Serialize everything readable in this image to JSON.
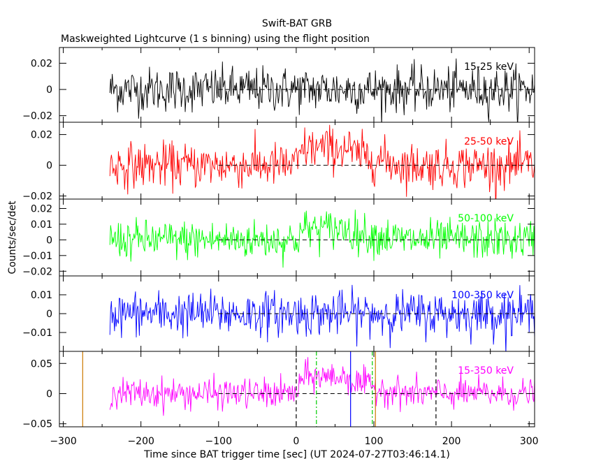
{
  "chart_data": {
    "type": "line",
    "title": "Swift-BAT GRB",
    "subtitle": "Maskweighted Lightcurve (1 s binning) using the flight position",
    "xlabel": "Time since BAT trigger time [sec] (UT 2024-07-27T03:46:14.1)",
    "ylabel": "Counts/sec/det",
    "xlim": [
      -305,
      307
    ],
    "xticks": [
      -300,
      -200,
      -100,
      0,
      100,
      200,
      300
    ],
    "x_start": -240,
    "x_end": 307,
    "x_step": 1,
    "grid": false,
    "legend": "inside-top-right label per panel",
    "panels": [
      {
        "name": "15-25 keV",
        "color": "#000000",
        "ylim": [
          -0.025,
          0.032
        ],
        "yticks": [
          0.02,
          0,
          -0.02
        ],
        "ytick_labels": [
          "0.02",
          "0",
          "−0.02"
        ],
        "noise_sigma": 0.0085,
        "excess_peak": 0.0
      },
      {
        "name": "25-50 keV",
        "color": "#ff0000",
        "ylim": [
          -0.022,
          0.028
        ],
        "yticks": [
          0.02,
          0,
          -0.02
        ],
        "ytick_labels": [
          "0.02",
          "0",
          "−0.02"
        ],
        "noise_sigma": 0.0072,
        "excess_peak": 0.011
      },
      {
        "name": "50-100 keV",
        "color": "#00ff00",
        "ylim": [
          -0.023,
          0.026
        ],
        "yticks": [
          0.02,
          0.01,
          0,
          -0.01,
          -0.02
        ],
        "ytick_labels": [
          "0.02",
          "0.01",
          "0",
          "−0.01",
          "−0.02"
        ],
        "noise_sigma": 0.0062,
        "excess_peak": 0.007
      },
      {
        "name": "100-350 keV",
        "color": "#0000ff",
        "ylim": [
          -0.02,
          0.02
        ],
        "yticks": [
          0.01,
          0,
          -0.01
        ],
        "ytick_labels": [
          "0.01",
          "0",
          "−0.01"
        ],
        "noise_sigma": 0.0058,
        "excess_peak": 0.0
      },
      {
        "name": "15-350 keV",
        "color": "#ff00ff",
        "ylim": [
          -0.055,
          0.07
        ],
        "yticks": [
          0.05,
          0,
          -0.05
        ],
        "ytick_labels": [
          "0.05",
          "0",
          "−0.05"
        ],
        "noise_sigma": 0.0125,
        "excess_peak": 0.028
      }
    ],
    "markers": [
      {
        "x": -275,
        "color": "#cc7a00",
        "style": "solid"
      },
      {
        "x": 0,
        "color": "#000000",
        "style": "dashed"
      },
      {
        "x": 26,
        "color": "#00cc00",
        "style": "dashdot"
      },
      {
        "x": 70,
        "color": "#0000ff",
        "style": "solid"
      },
      {
        "x": 98,
        "color": "#00cc00",
        "style": "dashdot"
      },
      {
        "x": 102,
        "color": "#cc7a00",
        "style": "solid"
      },
      {
        "x": 180,
        "color": "#000000",
        "style": "dashed"
      }
    ]
  }
}
